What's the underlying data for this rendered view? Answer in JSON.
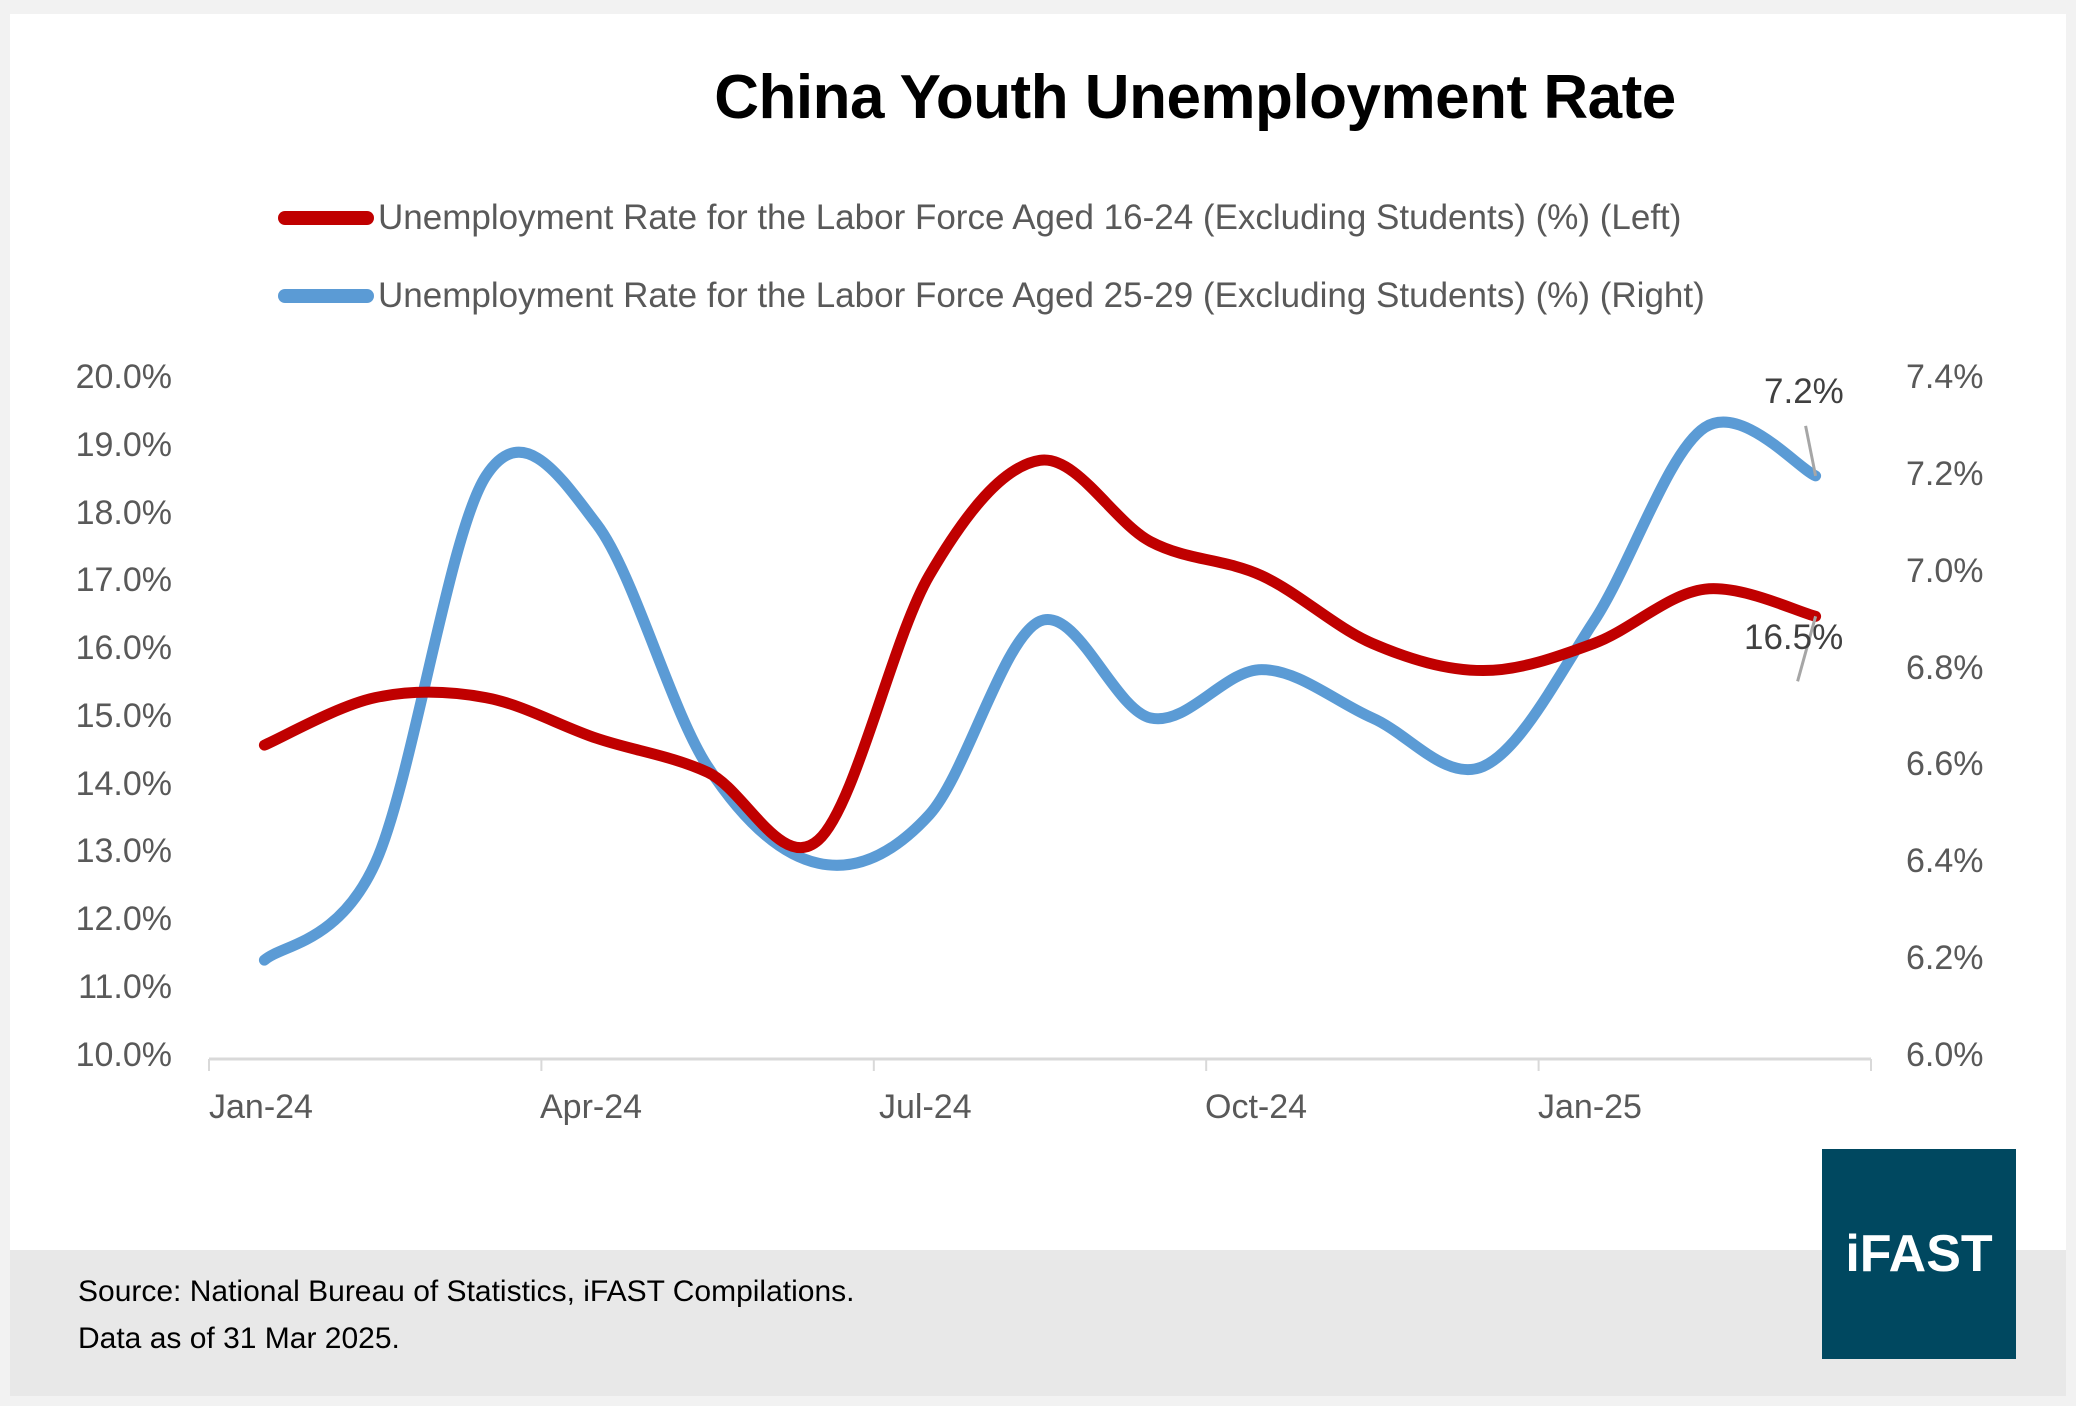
{
  "chart_data": {
    "type": "line",
    "title": "China Youth Unemployment Rate",
    "categories": [
      "Jan-24",
      "Feb-24",
      "Mar-24",
      "Apr-24",
      "May-24",
      "Jun-24",
      "Jul-24",
      "Aug-24",
      "Sep-24",
      "Oct-24",
      "Nov-24",
      "Dec-24",
      "Jan-25",
      "Feb-25",
      "Mar-25"
    ],
    "x_tick_labels": [
      "Jan-24",
      "Apr-24",
      "Jul-24",
      "Oct-24",
      "Jan-25"
    ],
    "series": [
      {
        "name": "Unemployment Rate for the Labor Force Aged 16-24 (Excluding Students) (%) (Left)",
        "axis": "left",
        "color": "#c00000",
        "values": [
          14.6,
          15.3,
          15.3,
          14.7,
          14.2,
          13.2,
          17.1,
          18.8,
          17.6,
          17.1,
          16.1,
          15.7,
          16.1,
          16.9,
          16.5
        ],
        "end_label": "16.5%"
      },
      {
        "name": "Unemployment Rate for the Labor Force Aged 25-29 (Excluding Students) (%) (Right)",
        "axis": "right",
        "color": "#5b9bd5",
        "values": [
          6.2,
          6.4,
          7.2,
          7.1,
          6.6,
          6.4,
          6.5,
          6.9,
          6.7,
          6.8,
          6.7,
          6.6,
          6.9,
          7.3,
          7.2
        ],
        "end_label": "7.2%"
      }
    ],
    "y_left": {
      "min": 10,
      "max": 20,
      "step": 1,
      "tick_labels": [
        "20.0%",
        "19.0%",
        "18.0%",
        "17.0%",
        "16.0%",
        "15.0%",
        "14.0%",
        "13.0%",
        "12.0%",
        "11.0%",
        "10.0%"
      ]
    },
    "y_right": {
      "min": 6.0,
      "max": 7.4,
      "step": 0.2,
      "tick_labels": [
        "7.4%",
        "7.2%",
        "7.0%",
        "6.8%",
        "6.6%",
        "6.4%",
        "6.2%",
        "6.0%"
      ]
    },
    "xlabel": "",
    "ylabel": "",
    "grid": false,
    "legend_position": "top",
    "smoothed": true
  },
  "title": "China Youth Unemployment Rate",
  "legend": [
    {
      "label": "Unemployment Rate for the Labor Force Aged 16-24 (Excluding Students) (%) (Left)",
      "color": "#c00000"
    },
    {
      "label": "Unemployment Rate for the Labor Force Aged 25-29 (Excluding Students) (%) (Right)",
      "color": "#5b9bd5"
    }
  ],
  "footer": {
    "source": "Source: National Bureau of Statistics, iFAST Compilations.",
    "as_of": "Data as of 31 Mar 2025."
  },
  "logo": {
    "text": "iFAST",
    "color": "#004860"
  }
}
